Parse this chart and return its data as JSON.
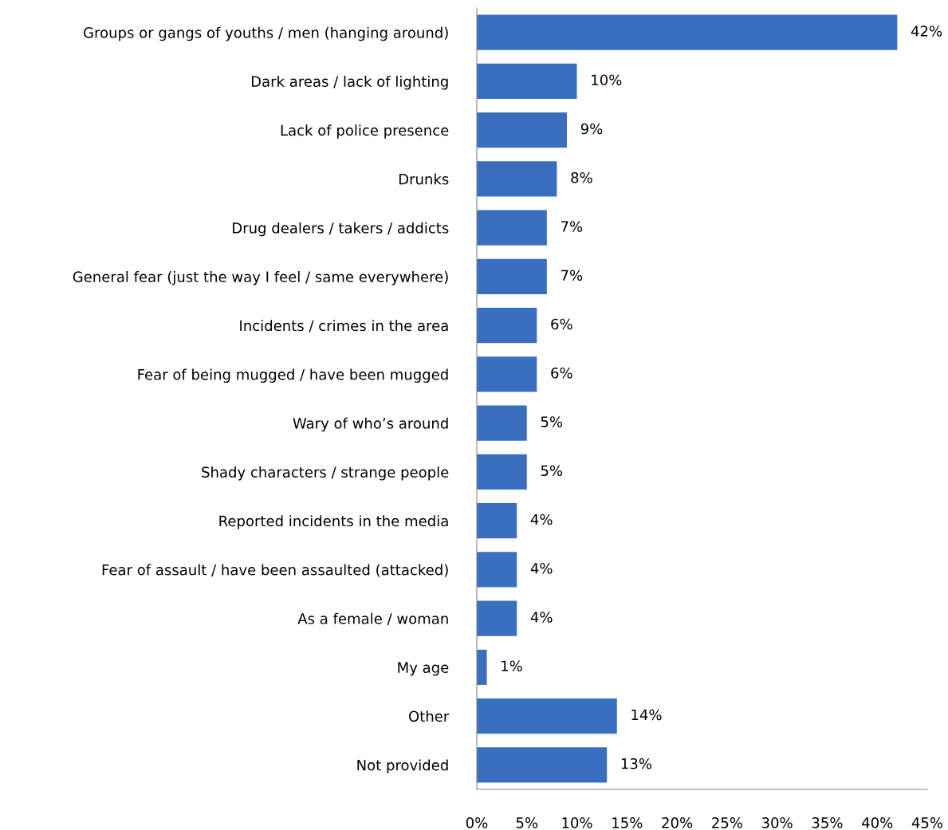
{
  "chart_data": {
    "type": "bar",
    "orientation": "horizontal",
    "categories": [
      "Groups or gangs of youths / men (hanging around)",
      "Dark areas / lack of lighting",
      "Lack of police presence",
      "Drunks",
      "Drug dealers / takers / addicts",
      "General fear (just the way I feel / same everywhere)",
      "Incidents / crimes in the area",
      "Fear of being mugged / have been mugged",
      "Wary of who’s around",
      "Shady characters / strange people",
      "Reported incidents in the media",
      "Fear of assault / have been assaulted (attacked)",
      "As a female / woman",
      "My age",
      "Other",
      "Not provided"
    ],
    "values": [
      42,
      10,
      9,
      8,
      7,
      7,
      6,
      6,
      5,
      5,
      4,
      4,
      4,
      1,
      14,
      13
    ],
    "value_labels": [
      "42%",
      "10%",
      "9%",
      "8%",
      "7%",
      "7%",
      "6%",
      "6%",
      "5%",
      "5%",
      "4%",
      "4%",
      "4%",
      "1%",
      "14%",
      "13%"
    ],
    "color": "#3a6fbf",
    "xlim": [
      0,
      45
    ],
    "xticks": [
      {
        "value": 0,
        "label": "0%"
      },
      {
        "value": 5,
        "label": "5%"
      },
      {
        "value": 10,
        "label": "10%"
      },
      {
        "value": 15,
        "label": "15%"
      },
      {
        "value": 20,
        "label": "20%"
      },
      {
        "value": 25,
        "label": "25%"
      },
      {
        "value": 30,
        "label": "30%"
      },
      {
        "value": 35,
        "label": "35%"
      },
      {
        "value": 40,
        "label": "40%"
      },
      {
        "value": 45,
        "label": "45%"
      }
    ],
    "grid": false,
    "legend": false
  }
}
